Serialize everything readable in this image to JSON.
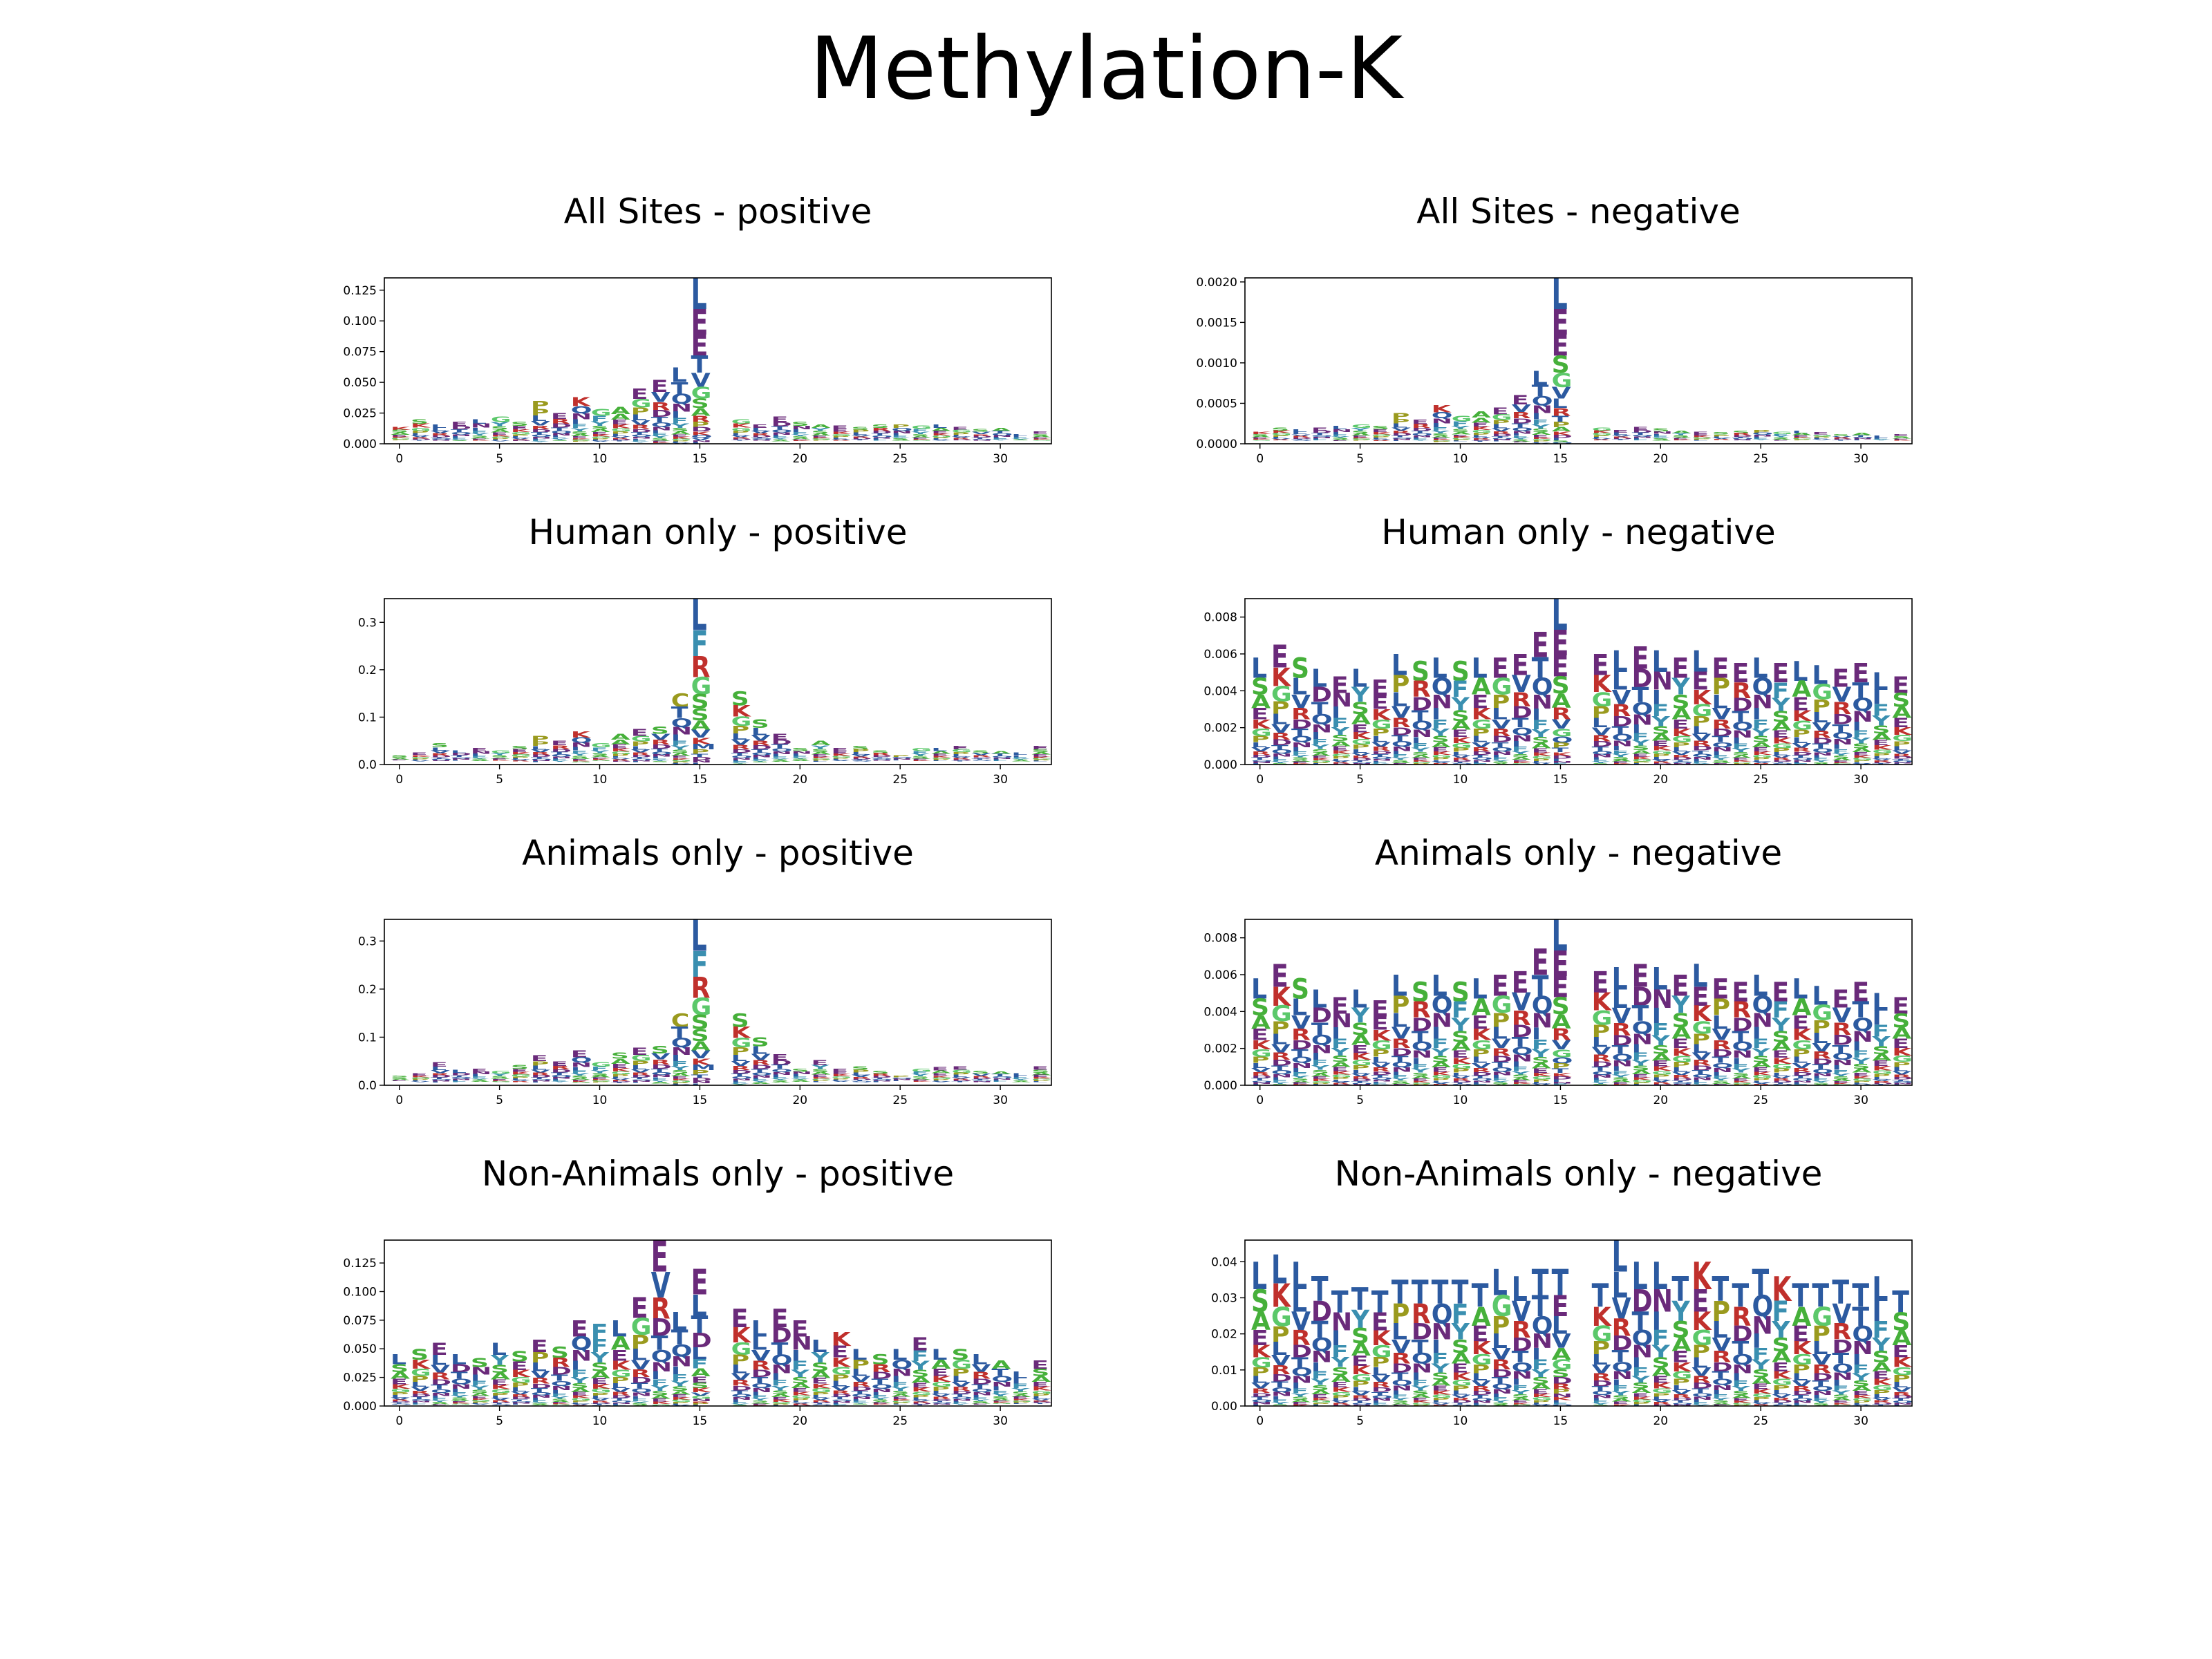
{
  "title": "Methylation-K",
  "colors": {
    "blue": "#2c5aa0",
    "purple": "#6a2a7a",
    "red": "#c0302c",
    "green": "#46b03a",
    "lightgreen": "#5bc86a",
    "olive": "#9a9a1e",
    "teal": "#3a8fb0",
    "gray": "#9a9a9a"
  },
  "chart_data": [
    {
      "type": "sequence-logo",
      "title": "All Sites - positive",
      "ylim": [
        0,
        0.135
      ],
      "yticks": [
        "0.000",
        "0.025",
        "0.050",
        "0.075",
        "0.100",
        "0.125"
      ],
      "ytick_values": [
        0,
        0.025,
        0.05,
        0.075,
        0.1,
        0.125
      ],
      "xticks": [
        0,
        5,
        10,
        15,
        20,
        25,
        30
      ],
      "heights": [
        0.014,
        0.02,
        0.016,
        0.018,
        0.02,
        0.022,
        0.018,
        0.035,
        0.025,
        0.038,
        0.028,
        0.03,
        0.045,
        0.052,
        0.062,
        0.135,
        0,
        0.02,
        0.016,
        0.022,
        0.018,
        0.016,
        0.015,
        0.014,
        0.016,
        0.016,
        0.015,
        0.016,
        0.014,
        0.012,
        0.013,
        0.008,
        0.01
      ],
      "top_letters": [
        "K",
        "S",
        "L",
        "E",
        "L",
        "G",
        "S",
        "P",
        "E",
        "K",
        "G",
        "A",
        "E",
        "E",
        "L",
        "L",
        "",
        "G",
        "E",
        "E",
        "S",
        "A",
        "E",
        "S",
        "S",
        "P",
        "G",
        "L",
        "E",
        "S",
        "A",
        "L",
        "E"
      ],
      "peak_stack": [
        "L",
        "E",
        "E",
        "T",
        "V",
        "G",
        "S",
        "A",
        "R",
        "P",
        "D",
        "K",
        "Q",
        "V",
        "N",
        "I"
      ]
    },
    {
      "type": "sequence-logo",
      "title": "All Sites - negative",
      "ylim": [
        0,
        0.00205
      ],
      "yticks": [
        "0.0000",
        "0.0005",
        "0.0010",
        "0.0015",
        "0.0020"
      ],
      "ytick_values": [
        0,
        0.0005,
        0.001,
        0.0015,
        0.002
      ],
      "xticks": [
        0,
        5,
        10,
        15,
        20,
        25,
        30
      ],
      "heights": [
        0.00015,
        0.0002,
        0.00018,
        0.0002,
        0.00022,
        0.00024,
        0.00022,
        0.00038,
        0.0003,
        0.00048,
        0.00034,
        0.0004,
        0.00045,
        0.0006,
        0.0009,
        0.00205,
        0,
        0.0002,
        0.00017,
        0.00021,
        0.00019,
        0.00016,
        0.00015,
        0.00014,
        0.00016,
        0.00017,
        0.00015,
        0.00016,
        0.00014,
        0.00012,
        0.00013,
        0.0001,
        0.00012
      ],
      "top_letters": [
        "K",
        "S",
        "L",
        "E",
        "L",
        "G",
        "S",
        "P",
        "E",
        "K",
        "G",
        "A",
        "E",
        "E",
        "L",
        "L",
        "",
        "G",
        "E",
        "E",
        "S",
        "A",
        "E",
        "S",
        "S",
        "P",
        "G",
        "L",
        "E",
        "S",
        "A",
        "L",
        "E"
      ],
      "peak_stack": [
        "L",
        "E",
        "E",
        "S",
        "G",
        "V",
        "L",
        "R",
        "T",
        "P",
        "A",
        "K",
        "D",
        "I",
        "S",
        "Q"
      ]
    },
    {
      "type": "sequence-logo",
      "title": "Human only - positive",
      "ylim": [
        0,
        0.35
      ],
      "yticks": [
        "0.0",
        "0.1",
        "0.2",
        "0.3"
      ],
      "ytick_values": [
        0,
        0.1,
        0.2,
        0.3
      ],
      "xticks": [
        0,
        5,
        10,
        15,
        20,
        25,
        30
      ],
      "heights": [
        0.02,
        0.025,
        0.045,
        0.03,
        0.035,
        0.03,
        0.04,
        0.06,
        0.05,
        0.07,
        0.045,
        0.065,
        0.075,
        0.08,
        0.15,
        0.35,
        0,
        0.155,
        0.095,
        0.065,
        0.035,
        0.05,
        0.035,
        0.04,
        0.03,
        0.02,
        0.035,
        0.035,
        0.04,
        0.03,
        0.028,
        0.025,
        0.04
      ],
      "top_letters": [
        "S",
        "E",
        "S",
        "L",
        "E",
        "G",
        "S",
        "P",
        "E",
        "K",
        "G",
        "A",
        "E",
        "S",
        "C",
        "L",
        "",
        "S",
        "S",
        "E",
        "S",
        "A",
        "E",
        "S",
        "S",
        "P",
        "G",
        "L",
        "E",
        "S",
        "A",
        "L",
        "E"
      ],
      "peak_stack": [
        "L",
        "F",
        "R",
        "G",
        "S",
        "S",
        "A",
        "V",
        "K",
        "M",
        "P",
        "T",
        "D",
        "N",
        "I"
      ]
    },
    {
      "type": "sequence-logo",
      "title": "Human only - negative",
      "ylim": [
        0,
        0.009
      ],
      "yticks": [
        "0.000",
        "0.002",
        "0.004",
        "0.006",
        "0.008"
      ],
      "ytick_values": [
        0,
        0.002,
        0.004,
        0.006,
        0.008
      ],
      "xticks": [
        0,
        5,
        10,
        15,
        20,
        25,
        30
      ],
      "heights": [
        0.0058,
        0.0065,
        0.0058,
        0.0052,
        0.0048,
        0.0052,
        0.0046,
        0.006,
        0.0056,
        0.0058,
        0.0056,
        0.0058,
        0.0058,
        0.006,
        0.0072,
        0.009,
        0,
        0.006,
        0.0062,
        0.0064,
        0.0062,
        0.0058,
        0.0062,
        0.0058,
        0.0055,
        0.0058,
        0.0055,
        0.0056,
        0.0054,
        0.0052,
        0.0055,
        0.005,
        0.0048
      ],
      "top_letters": [
        "L",
        "E",
        "S",
        "L",
        "E",
        "L",
        "E",
        "L",
        "S",
        "L",
        "S",
        "L",
        "E",
        "E",
        "E",
        "L",
        "",
        "E",
        "L",
        "E",
        "L",
        "E",
        "L",
        "E",
        "E",
        "L",
        "E",
        "L",
        "L",
        "E",
        "E",
        "L",
        "E"
      ],
      "peak_stack": [
        "L",
        "E",
        "E",
        "S",
        "A",
        "R",
        "V",
        "G",
        "Q",
        "P",
        "T",
        "K",
        "D",
        "I",
        "N",
        "F"
      ]
    },
    {
      "type": "sequence-logo",
      "title": "Animals only - positive",
      "ylim": [
        0,
        0.345
      ],
      "yticks": [
        "0.0",
        "0.1",
        "0.2",
        "0.3"
      ],
      "ytick_values": [
        0,
        0.1,
        0.2,
        0.3
      ],
      "xticks": [
        0,
        5,
        10,
        15,
        20,
        25,
        30
      ],
      "heights": [
        0.02,
        0.025,
        0.048,
        0.032,
        0.035,
        0.03,
        0.042,
        0.062,
        0.05,
        0.072,
        0.048,
        0.068,
        0.078,
        0.082,
        0.15,
        0.345,
        0,
        0.15,
        0.1,
        0.065,
        0.035,
        0.052,
        0.035,
        0.04,
        0.03,
        0.02,
        0.035,
        0.038,
        0.04,
        0.03,
        0.028,
        0.025,
        0.04
      ],
      "top_letters": [
        "S",
        "E",
        "E",
        "L",
        "E",
        "G",
        "S",
        "E",
        "E",
        "E",
        "G",
        "S",
        "E",
        "S",
        "C",
        "L",
        "",
        "S",
        "S",
        "E",
        "S",
        "E",
        "E",
        "S",
        "S",
        "P",
        "G",
        "E",
        "E",
        "S",
        "A",
        "L",
        "E"
      ],
      "peak_stack": [
        "L",
        "F",
        "R",
        "G",
        "S",
        "S",
        "A",
        "V",
        "K",
        "M",
        "P",
        "T",
        "D",
        "N",
        "I"
      ]
    },
    {
      "type": "sequence-logo",
      "title": "Animals only - negative",
      "ylim": [
        0,
        0.009
      ],
      "yticks": [
        "0.000",
        "0.002",
        "0.004",
        "0.006",
        "0.008"
      ],
      "ytick_values": [
        0,
        0.002,
        0.004,
        0.006,
        0.008
      ],
      "xticks": [
        0,
        5,
        10,
        15,
        20,
        25,
        30
      ],
      "heights": [
        0.0058,
        0.0066,
        0.0058,
        0.0052,
        0.0048,
        0.0052,
        0.0046,
        0.006,
        0.0056,
        0.006,
        0.0056,
        0.0058,
        0.006,
        0.0062,
        0.0074,
        0.009,
        0,
        0.0062,
        0.0064,
        0.0066,
        0.0064,
        0.006,
        0.0066,
        0.0058,
        0.0056,
        0.006,
        0.0056,
        0.0058,
        0.0054,
        0.0052,
        0.0056,
        0.005,
        0.0048
      ],
      "top_letters": [
        "L",
        "E",
        "S",
        "L",
        "E",
        "L",
        "E",
        "L",
        "S",
        "L",
        "S",
        "L",
        "E",
        "E",
        "E",
        "L",
        "",
        "E",
        "L",
        "E",
        "L",
        "E",
        "L",
        "E",
        "E",
        "L",
        "E",
        "L",
        "L",
        "E",
        "E",
        "L",
        "E"
      ],
      "peak_stack": [
        "L",
        "E",
        "E",
        "S",
        "A",
        "R",
        "V",
        "G",
        "Q",
        "P",
        "T",
        "K",
        "D",
        "I",
        "N",
        "F"
      ]
    },
    {
      "type": "sequence-logo",
      "title": "Non-Animals only - positive",
      "ylim": [
        0,
        0.145
      ],
      "yticks": [
        "0.000",
        "0.025",
        "0.050",
        "0.075",
        "0.100",
        "0.125"
      ],
      "ytick_values": [
        0,
        0.025,
        0.05,
        0.075,
        0.1,
        0.125
      ],
      "xticks": [
        0,
        5,
        10,
        15,
        20,
        25,
        30
      ],
      "heights": [
        0.045,
        0.05,
        0.055,
        0.045,
        0.042,
        0.055,
        0.048,
        0.058,
        0.052,
        0.075,
        0.072,
        0.075,
        0.095,
        0.145,
        0.082,
        0.12,
        0,
        0.085,
        0.075,
        0.085,
        0.075,
        0.058,
        0.065,
        0.05,
        0.045,
        0.05,
        0.06,
        0.05,
        0.05,
        0.045,
        0.04,
        0.03,
        0.04
      ],
      "top_letters": [
        "L",
        "S",
        "E",
        "L",
        "S",
        "L",
        "S",
        "E",
        "S",
        "E",
        "F",
        "L",
        "E",
        "E",
        "L",
        "E",
        "",
        "E",
        "L",
        "E",
        "E",
        "L",
        "K",
        "L",
        "S",
        "L",
        "E",
        "L",
        "S",
        "L",
        "A",
        "L",
        "E"
      ],
      "peak_stack": [
        "E",
        "L",
        "T",
        "D",
        "L",
        "F",
        "A",
        "E",
        "S",
        "K",
        "V",
        "G",
        "N",
        "R",
        "P",
        "I"
      ]
    },
    {
      "type": "sequence-logo",
      "title": "Non-Animals only - negative",
      "ylim": [
        0,
        0.046
      ],
      "yticks": [
        "0.00",
        "0.01",
        "0.02",
        "0.03",
        "0.04"
      ],
      "ytick_values": [
        0,
        0.01,
        0.02,
        0.03,
        0.04
      ],
      "xticks": [
        0,
        5,
        10,
        15,
        20,
        25,
        30
      ],
      "heights": [
        0.04,
        0.042,
        0.04,
        0.036,
        0.032,
        0.033,
        0.032,
        0.035,
        0.035,
        0.035,
        0.035,
        0.034,
        0.038,
        0.036,
        0.038,
        0.038,
        0,
        0.034,
        0.046,
        0.04,
        0.04,
        0.036,
        0.04,
        0.036,
        0.034,
        0.038,
        0.036,
        0.034,
        0.034,
        0.035,
        0.034,
        0.036,
        0.032
      ],
      "top_letters": [
        "L",
        "L",
        "L",
        "T",
        "T",
        "T",
        "T",
        "T",
        "T",
        "T",
        "T",
        "T",
        "L",
        "L",
        "T",
        "E",
        "",
        "T",
        "L",
        "L",
        "L",
        "T",
        "K",
        "T",
        "T",
        "T",
        "K",
        "T",
        "T",
        "T",
        "T",
        "L",
        "T"
      ],
      "peak_stack": [
        "T",
        "E",
        "L",
        "V",
        "A",
        "G",
        "S",
        "D",
        "R",
        "P",
        "N",
        "K",
        "I",
        "F",
        "Q"
      ]
    }
  ]
}
